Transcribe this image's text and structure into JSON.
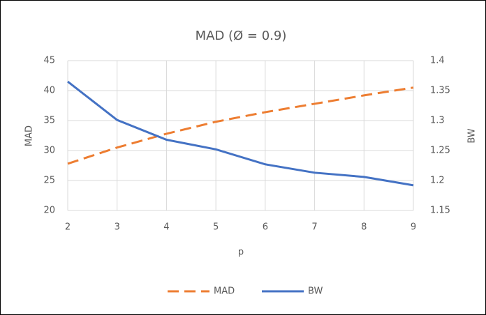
{
  "chart_data": {
    "type": "line",
    "title": "MAD (Ø = 0.9)",
    "x_label": "p",
    "y_label": "MAD",
    "y2_label": "BW",
    "x": [
      2,
      3,
      4,
      5,
      6,
      7,
      8,
      9
    ],
    "xlim": [
      2,
      9
    ],
    "xticks": [
      2,
      3,
      4,
      5,
      6,
      7,
      8,
      9
    ],
    "ylim": [
      20,
      45
    ],
    "yticks": [
      20,
      25,
      30,
      35,
      40,
      45
    ],
    "y2lim": [
      1.15,
      1.4
    ],
    "y2ticks": [
      1.15,
      1.2,
      1.25,
      1.3,
      1.35,
      1.4
    ],
    "grid": true,
    "legend": "bottom",
    "series": [
      {
        "name": "MAD",
        "color": "#ed7d31",
        "line_style": "dashed",
        "values": [
          27.8,
          30.5,
          32.8,
          34.8,
          36.4,
          37.8,
          39.2,
          40.5
        ]
      },
      {
        "name": "BW",
        "color": "#4472c4",
        "line_style": "solid",
        "axis": "y2",
        "values": [
          1.365,
          1.301,
          1.268,
          1.252,
          1.227,
          1.213,
          1.206,
          1.192
        ]
      }
    ]
  }
}
